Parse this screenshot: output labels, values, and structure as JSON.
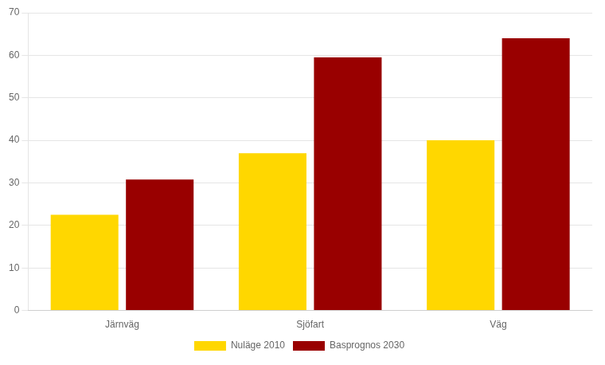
{
  "chart_data": {
    "type": "bar",
    "categories": [
      "Järnväg",
      "Sjöfart",
      "Väg"
    ],
    "series": [
      {
        "name": "Nuläge 2010",
        "color": "#FFD700",
        "values": [
          22.5,
          37.0,
          40.0
        ]
      },
      {
        "name": "Basprognos 2030",
        "color": "#990000",
        "values": [
          30.8,
          59.5,
          64.0
        ]
      }
    ],
    "ylim": [
      0,
      70
    ],
    "yticks": [
      0,
      10,
      20,
      30,
      40,
      50,
      60,
      70
    ],
    "grid": true,
    "legend": "bottom"
  }
}
